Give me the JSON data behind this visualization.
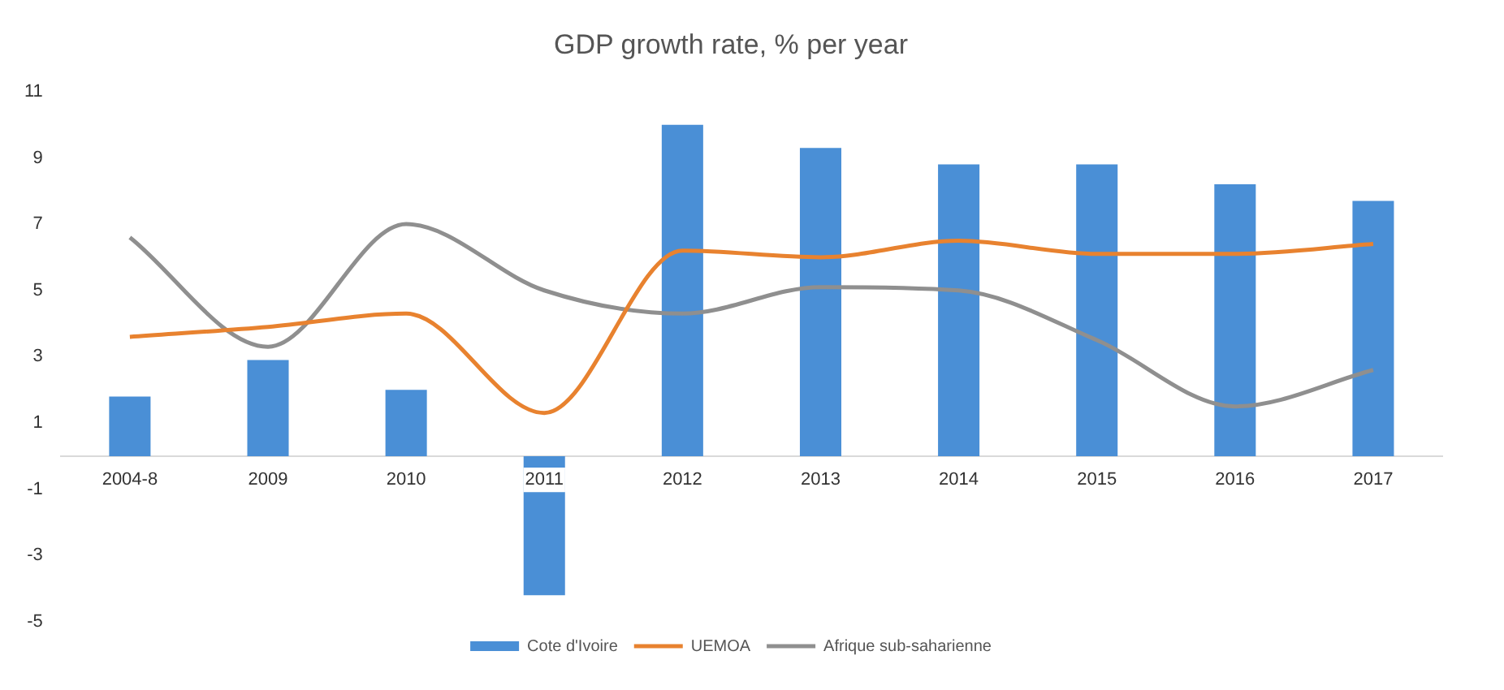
{
  "chart_data": {
    "type": "bar",
    "title": "GDP growth rate, % per year",
    "categories": [
      "2004-8",
      "2009",
      "2010",
      "2011",
      "2012",
      "2013",
      "2014",
      "2015",
      "2016",
      "2017"
    ],
    "series": [
      {
        "name": "Cote d'Ivoire",
        "color": "#4a8fd6",
        "values": [
          1.8,
          2.9,
          2.0,
          -4.2,
          10.0,
          9.3,
          8.8,
          8.8,
          8.2,
          7.7
        ]
      },
      {
        "name": "UEMOA",
        "type": "line",
        "color": "#e8822f",
        "values": [
          3.6,
          3.9,
          4.3,
          1.3,
          6.2,
          6.0,
          6.5,
          6.1,
          6.1,
          6.4
        ]
      },
      {
        "name": "Afrique sub-saharienne",
        "type": "line",
        "color": "#8f8f8f",
        "values": [
          6.6,
          3.3,
          7.0,
          5.0,
          4.3,
          5.1,
          5.0,
          3.5,
          1.5,
          2.6
        ]
      }
    ],
    "ylim": [
      -5,
      11
    ],
    "yticks": [
      -5,
      -3,
      -1,
      1,
      3,
      5,
      7,
      9,
      11
    ],
    "grid": false,
    "legend": "bottom",
    "marker": "none",
    "line_style": "solid"
  }
}
